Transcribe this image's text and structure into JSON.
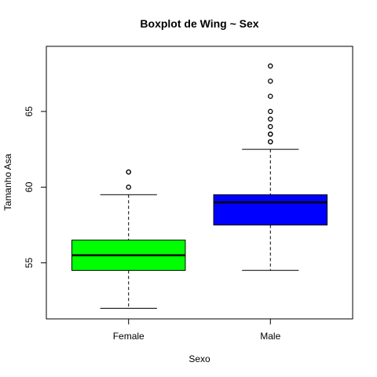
{
  "chart_data": {
    "type": "boxplot",
    "title": "Boxplot de Wing ~ Sex",
    "xlabel": "Sexo",
    "ylabel": "Tamanho Asa",
    "ylim": [
      51.3,
      69.3
    ],
    "y_ticks": [
      55,
      60,
      65
    ],
    "categories": [
      "Female",
      "Male"
    ],
    "series": [
      {
        "category": "Female",
        "color": "#00ff00",
        "whisker_low": 52,
        "q1": 54.5,
        "median": 55.5,
        "q3": 56.5,
        "whisker_high": 59.5,
        "outliers": [
          60,
          61,
          61
        ]
      },
      {
        "category": "Male",
        "color": "#0000ff",
        "whisker_low": 54.5,
        "q1": 57.5,
        "median": 59,
        "q3": 59.5,
        "whisker_high": 62.5,
        "outliers": [
          63,
          63,
          63.5,
          63.5,
          64,
          64.5,
          65,
          66,
          67,
          68
        ]
      }
    ]
  }
}
